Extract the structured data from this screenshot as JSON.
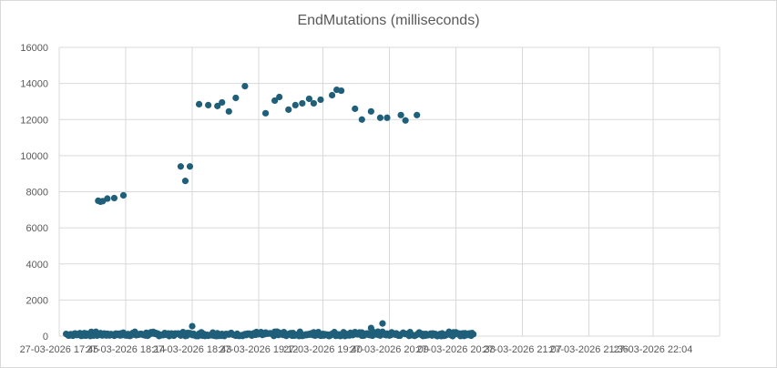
{
  "chart_data": {
    "type": "scatter",
    "title": "EndMutations (milliseconds)",
    "xlabel": "",
    "ylabel": "",
    "ylim": [
      0,
      16000
    ],
    "y_ticks": [
      0,
      2000,
      4000,
      6000,
      8000,
      10000,
      12000,
      14000,
      16000
    ],
    "x_tick_labels": [
      "27-03-2026 17:45",
      "27-03-2026 18:14",
      "27-03-2026 18:43",
      "27-03-2026 19:12",
      "27-03-2026 19:40",
      "27-03-2026 20:09",
      "27-03-2026 20:38",
      "27-03-2026 21:07",
      "27-03-2026 21:36",
      "27-03-2026 22:04"
    ],
    "xlim": [
      "27-03-2026 17:45",
      "27-03-2026 22:33"
    ],
    "grid": true,
    "legend": "none",
    "marker_color": "#1f5f7a",
    "series": [
      {
        "points": [
          [
            "27-03-2026 18:02",
            7500
          ],
          [
            "27-03-2026 18:03",
            7450
          ],
          [
            "27-03-2026 18:04",
            7480
          ],
          [
            "27-03-2026 18:06",
            7620
          ],
          [
            "27-03-2026 18:09",
            7650
          ],
          [
            "27-03-2026 18:13",
            7800
          ],
          [
            "27-03-2026 18:38",
            9400
          ],
          [
            "27-03-2026 18:40",
            8600
          ],
          [
            "27-03-2026 18:42",
            9400
          ],
          [
            "27-03-2026 18:46",
            12850
          ],
          [
            "27-03-2026 18:50",
            12800
          ],
          [
            "27-03-2026 18:54",
            12750
          ],
          [
            "27-03-2026 18:56",
            12950
          ],
          [
            "27-03-2026 18:59",
            12450
          ],
          [
            "27-03-2026 19:02",
            13200
          ],
          [
            "27-03-2026 19:06",
            13850
          ],
          [
            "27-03-2026 19:15",
            12350
          ],
          [
            "27-03-2026 19:19",
            13050
          ],
          [
            "27-03-2026 19:21",
            13250
          ],
          [
            "27-03-2026 19:25",
            12550
          ],
          [
            "27-03-2026 19:28",
            12800
          ],
          [
            "27-03-2026 19:31",
            12900
          ],
          [
            "27-03-2026 19:34",
            13150
          ],
          [
            "27-03-2026 19:36",
            12900
          ],
          [
            "27-03-2026 19:39",
            13100
          ],
          [
            "27-03-2026 19:44",
            13350
          ],
          [
            "27-03-2026 19:46",
            13650
          ],
          [
            "27-03-2026 19:48",
            13600
          ],
          [
            "27-03-2026 19:54",
            12600
          ],
          [
            "27-03-2026 19:57",
            12000
          ],
          [
            "27-03-2026 20:01",
            12450
          ],
          [
            "27-03-2026 20:05",
            12100
          ],
          [
            "27-03-2026 20:08",
            12100
          ],
          [
            "27-03-2026 20:14",
            12250
          ],
          [
            "27-03-2026 20:16",
            11950
          ],
          [
            "27-03-2026 20:21",
            12250
          ],
          [
            "27-03-2026 18:43",
            550
          ],
          [
            "27-03-2026 20:01",
            450
          ],
          [
            "27-03-2026 20:06",
            700
          ],
          [
            "27-03-2026 20:04",
            250
          ],
          [
            "27-03-2026 19:57",
            200
          ],
          [
            "27-03-2026 19:20",
            250
          ]
        ]
      }
    ],
    "baseline_band": {
      "x_start": "27-03-2026 17:48",
      "x_end": "27-03-2026 20:45",
      "y_min": 0,
      "y_max": 250
    }
  }
}
